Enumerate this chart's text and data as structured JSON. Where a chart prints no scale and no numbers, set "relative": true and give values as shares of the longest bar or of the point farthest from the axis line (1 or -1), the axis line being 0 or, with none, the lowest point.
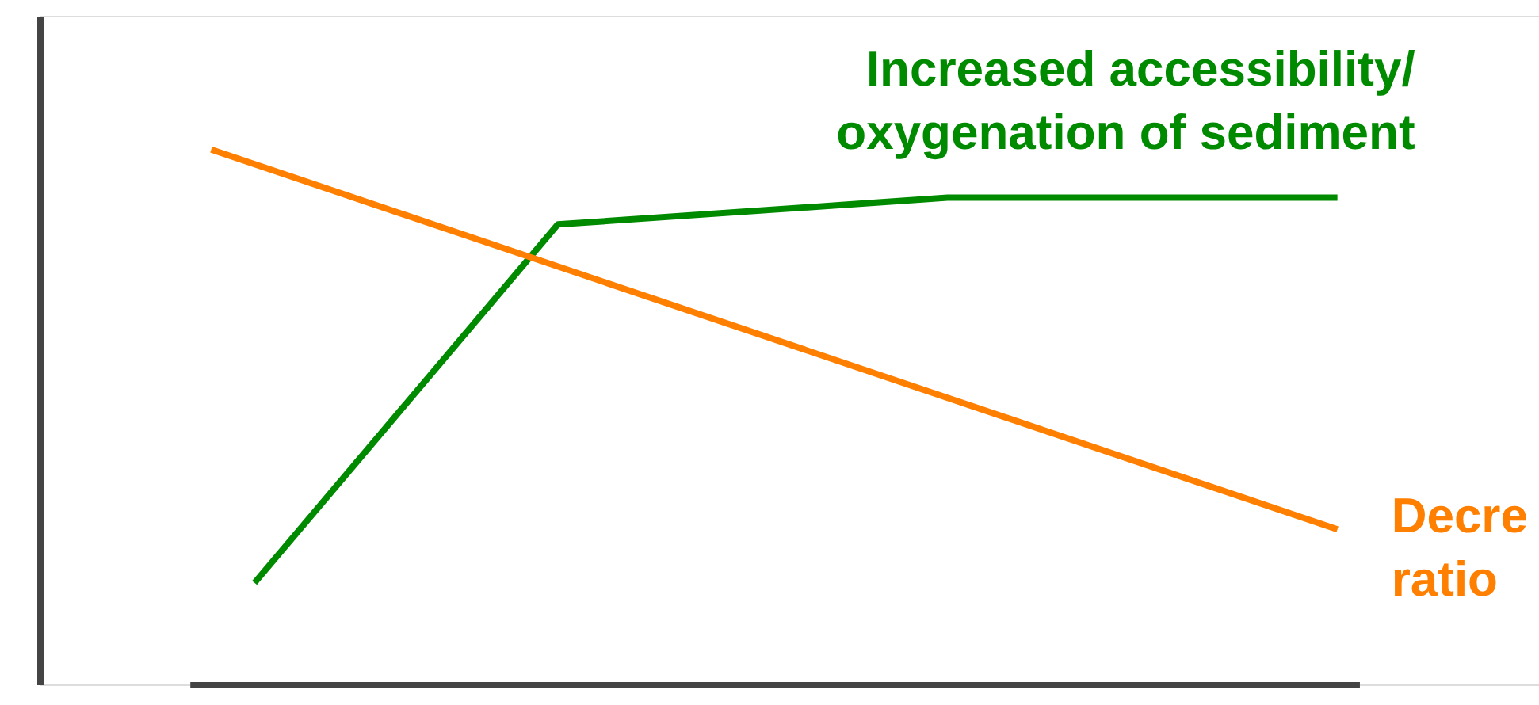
{
  "chart_data": {
    "type": "line",
    "relative": true,
    "marker": "none",
    "line_style": "solid",
    "categories": [
      null,
      null,
      null,
      null,
      null,
      null,
      null,
      null,
      null,
      null,
      null,
      null,
      null,
      null,
      null,
      null,
      null,
      null,
      null,
      null,
      null,
      null,
      null,
      null,
      null,
      null,
      null
    ],
    "series": [
      {
        "name": "Increased accessibility/ oxygenation of sediment",
        "color": "#008a00",
        "values": [
          null,
          0.19,
          null,
          null,
          null,
          null,
          null,
          null,
          0.86,
          null,
          null,
          null,
          null,
          null,
          null,
          null,
          null,
          0.91,
          null,
          null,
          null,
          null,
          null,
          null,
          null,
          null,
          0.91
        ]
      },
      {
        "name": "Decre ratio",
        "color": "#ff7f00",
        "values": [
          1.0,
          null,
          null,
          null,
          null,
          null,
          null,
          null,
          null,
          null,
          null,
          null,
          null,
          null,
          null,
          null,
          null,
          null,
          null,
          null,
          null,
          null,
          null,
          null,
          null,
          null,
          0.29
        ]
      }
    ]
  }
}
